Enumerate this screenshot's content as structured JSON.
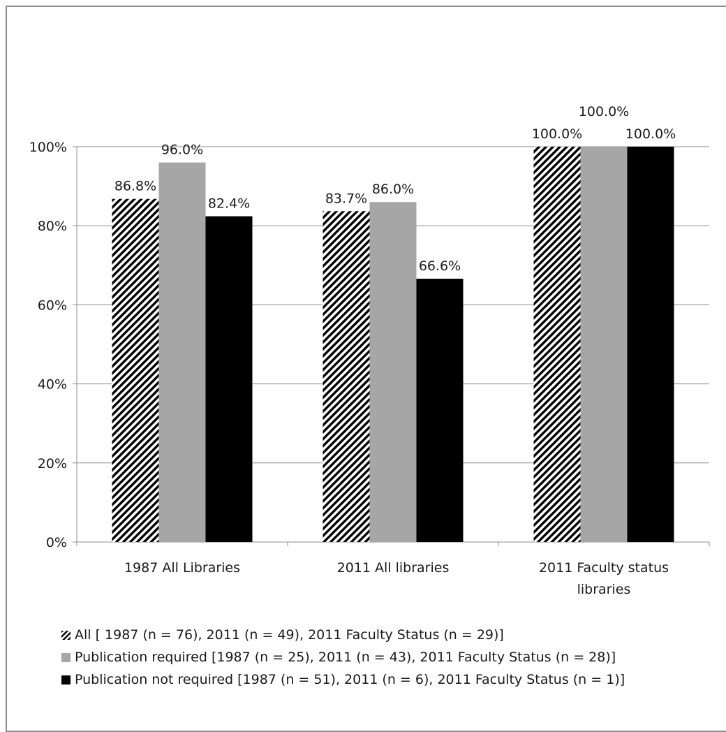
{
  "chart_data": {
    "type": "bar",
    "categories": [
      "1987 All Libraries",
      "2011 All libraries",
      "2011 Faculty status libraries"
    ],
    "category_lines": [
      [
        "1987 All Libraries"
      ],
      [
        "2011 All libraries"
      ],
      [
        "2011 Faculty status",
        "libraries"
      ]
    ],
    "series": [
      {
        "name": "All [ 1987 (n = 76), 2011 (n = 49), 2011 Faculty Status (n = 29)]",
        "values": [
          86.8,
          83.7,
          100.0
        ],
        "labels": [
          "86.8%",
          "83.7%",
          "100.0%"
        ],
        "color": "#000000",
        "pattern": "diagonal-hatch"
      },
      {
        "name": "Publication required [1987 (n = 25), 2011 (n = 43), 2011 Faculty Status (n  = 28)]",
        "values": [
          96.0,
          86.0,
          100.0
        ],
        "labels": [
          "96.0%",
          "86.0%",
          "100.0%"
        ],
        "color": "#a6a6a6",
        "pattern": "solid"
      },
      {
        "name": "Publication not required [1987 (n = 51), 2011 (n = 6), 2011 Faculty Status (n = 1)]",
        "values": [
          82.4,
          66.6,
          100.0
        ],
        "labels": [
          "82.4%",
          "66.6%",
          "100.0%"
        ],
        "color": "#000000",
        "pattern": "solid"
      }
    ],
    "y_ticks": [
      "0%",
      "20%",
      "40%",
      "60%",
      "80%",
      "100%"
    ],
    "ylim": [
      0,
      100
    ],
    "grid": true,
    "legend_position": "bottom",
    "title": "",
    "xlabel": "",
    "ylabel": ""
  }
}
